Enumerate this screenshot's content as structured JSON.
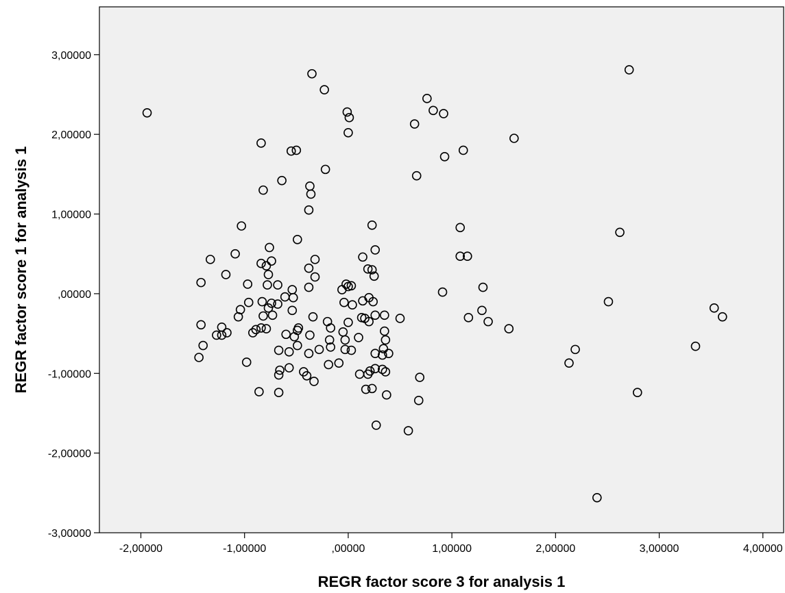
{
  "chart_data": {
    "type": "scatter",
    "xlabel": "REGR factor score   3 for analysis 1",
    "ylabel": "REGR factor score   1 for analysis 1",
    "xlim": [
      -2.4,
      4.2
    ],
    "ylim": [
      -3.0,
      3.6
    ],
    "xticks": [
      -2,
      -1,
      0,
      1,
      2,
      3,
      4
    ],
    "yticks": [
      -3,
      -2,
      -1,
      0,
      1,
      2,
      3
    ],
    "xtick_labels": [
      "-2,00000",
      "-1,00000",
      ",00000",
      "1,00000",
      "2,00000",
      "3,00000",
      "4,00000"
    ],
    "ytick_labels": [
      "-3,00000",
      "-2,00000",
      "-1,00000",
      ",00000",
      "1,00000",
      "2,00000",
      "3,00000"
    ],
    "grid": false,
    "legend": "none",
    "colors": {
      "plot_bg": "#f0f0f0",
      "marker": "#000000"
    },
    "points": [
      [
        -1.94,
        2.27
      ],
      [
        2.71,
        2.81
      ],
      [
        -0.35,
        2.76
      ],
      [
        -0.23,
        2.56
      ],
      [
        0.76,
        2.45
      ],
      [
        -0.01,
        2.28
      ],
      [
        0.01,
        2.21
      ],
      [
        0.82,
        2.3
      ],
      [
        0.92,
        2.26
      ],
      [
        0.64,
        2.13
      ],
      [
        0.0,
        2.02
      ],
      [
        1.6,
        1.95
      ],
      [
        -0.84,
        1.89
      ],
      [
        -0.55,
        1.79
      ],
      [
        -0.5,
        1.8
      ],
      [
        1.11,
        1.8
      ],
      [
        0.93,
        1.72
      ],
      [
        -0.22,
        1.56
      ],
      [
        0.66,
        1.48
      ],
      [
        -0.64,
        1.42
      ],
      [
        -0.37,
        1.35
      ],
      [
        -0.82,
        1.3
      ],
      [
        -0.36,
        1.25
      ],
      [
        -0.38,
        1.05
      ],
      [
        -1.03,
        0.85
      ],
      [
        0.23,
        0.86
      ],
      [
        1.08,
        0.83
      ],
      [
        2.62,
        0.77
      ],
      [
        -0.49,
        0.68
      ],
      [
        -0.76,
        0.58
      ],
      [
        0.26,
        0.55
      ],
      [
        -1.09,
        0.5
      ],
      [
        -1.33,
        0.43
      ],
      [
        -0.74,
        0.41
      ],
      [
        -0.84,
        0.38
      ],
      [
        -0.79,
        0.35
      ],
      [
        -0.32,
        0.43
      ],
      [
        0.14,
        0.46
      ],
      [
        1.08,
        0.47
      ],
      [
        1.15,
        0.47
      ],
      [
        -0.38,
        0.32
      ],
      [
        0.19,
        0.31
      ],
      [
        0.23,
        0.3
      ],
      [
        -1.18,
        0.24
      ],
      [
        -0.77,
        0.24
      ],
      [
        -0.32,
        0.21
      ],
      [
        0.25,
        0.22
      ],
      [
        -1.42,
        0.14
      ],
      [
        -0.97,
        0.12
      ],
      [
        -0.78,
        0.11
      ],
      [
        -0.68,
        0.11
      ],
      [
        -0.38,
        0.08
      ],
      [
        -0.54,
        0.05
      ],
      [
        -0.06,
        0.05
      ],
      [
        -0.02,
        0.12
      ],
      [
        0.0,
        0.09
      ],
      [
        0.03,
        0.1
      ],
      [
        1.3,
        0.08
      ],
      [
        -0.61,
        -0.04
      ],
      [
        -0.53,
        -0.05
      ],
      [
        0.2,
        -0.05
      ],
      [
        0.91,
        0.02
      ],
      [
        -0.96,
        -0.11
      ],
      [
        -0.83,
        -0.1
      ],
      [
        -0.74,
        -0.12
      ],
      [
        -0.68,
        -0.13
      ],
      [
        -0.04,
        -0.11
      ],
      [
        0.04,
        -0.14
      ],
      [
        0.14,
        -0.09
      ],
      [
        0.24,
        -0.1
      ],
      [
        2.51,
        -0.1
      ],
      [
        -1.04,
        -0.2
      ],
      [
        -0.77,
        -0.18
      ],
      [
        -0.54,
        -0.21
      ],
      [
        1.29,
        -0.21
      ],
      [
        3.53,
        -0.18
      ],
      [
        -1.06,
        -0.29
      ],
      [
        -0.82,
        -0.28
      ],
      [
        -0.73,
        -0.27
      ],
      [
        -0.34,
        -0.29
      ],
      [
        0.13,
        -0.3
      ],
      [
        0.16,
        -0.31
      ],
      [
        0.26,
        -0.27
      ],
      [
        0.35,
        -0.27
      ],
      [
        0.5,
        -0.31
      ],
      [
        1.16,
        -0.3
      ],
      [
        3.61,
        -0.29
      ],
      [
        -0.2,
        -0.35
      ],
      [
        0.0,
        -0.36
      ],
      [
        0.2,
        -0.35
      ],
      [
        1.35,
        -0.35
      ],
      [
        -1.42,
        -0.39
      ],
      [
        -1.22,
        -0.42
      ],
      [
        -0.84,
        -0.43
      ],
      [
        -0.79,
        -0.44
      ],
      [
        -0.89,
        -0.45
      ],
      [
        -0.48,
        -0.43
      ],
      [
        -0.49,
        -0.46
      ],
      [
        -0.17,
        -0.43
      ],
      [
        -0.05,
        -0.48
      ],
      [
        0.35,
        -0.47
      ],
      [
        1.55,
        -0.44
      ],
      [
        -0.92,
        -0.49
      ],
      [
        -1.17,
        -0.49
      ],
      [
        -1.22,
        -0.52
      ],
      [
        -1.27,
        -0.52
      ],
      [
        -0.6,
        -0.51
      ],
      [
        -0.52,
        -0.54
      ],
      [
        -0.37,
        -0.52
      ],
      [
        -0.18,
        -0.58
      ],
      [
        -0.03,
        -0.58
      ],
      [
        0.1,
        -0.55
      ],
      [
        0.36,
        -0.58
      ],
      [
        -1.4,
        -0.65
      ],
      [
        -0.49,
        -0.65
      ],
      [
        -0.17,
        -0.67
      ],
      [
        -0.28,
        -0.7
      ],
      [
        -0.03,
        -0.7
      ],
      [
        0.03,
        -0.71
      ],
      [
        0.26,
        -0.75
      ],
      [
        0.33,
        -0.77
      ],
      [
        0.34,
        -0.69
      ],
      [
        0.39,
        -0.75
      ],
      [
        3.35,
        -0.66
      ],
      [
        2.19,
        -0.7
      ],
      [
        -1.44,
        -0.8
      ],
      [
        -0.98,
        -0.86
      ],
      [
        -0.67,
        -0.71
      ],
      [
        -0.57,
        -0.73
      ],
      [
        -0.38,
        -0.75
      ],
      [
        -0.19,
        -0.89
      ],
      [
        -0.09,
        -0.87
      ],
      [
        2.13,
        -0.87
      ],
      [
        -0.66,
        -0.96
      ],
      [
        -0.57,
        -0.93
      ],
      [
        -0.67,
        -1.02
      ],
      [
        -0.43,
        -0.98
      ],
      [
        -0.4,
        -1.03
      ],
      [
        -0.33,
        -1.1
      ],
      [
        0.11,
        -1.01
      ],
      [
        0.19,
        -1.01
      ],
      [
        0.21,
        -0.97
      ],
      [
        0.26,
        -0.94
      ],
      [
        0.33,
        -0.95
      ],
      [
        0.36,
        -0.98
      ],
      [
        0.69,
        -1.05
      ],
      [
        -0.86,
        -1.23
      ],
      [
        -0.67,
        -1.24
      ],
      [
        0.17,
        -1.2
      ],
      [
        0.23,
        -1.19
      ],
      [
        0.37,
        -1.27
      ],
      [
        0.68,
        -1.34
      ],
      [
        2.79,
        -1.24
      ],
      [
        0.27,
        -1.65
      ],
      [
        0.58,
        -1.72
      ],
      [
        2.4,
        -2.56
      ]
    ]
  }
}
